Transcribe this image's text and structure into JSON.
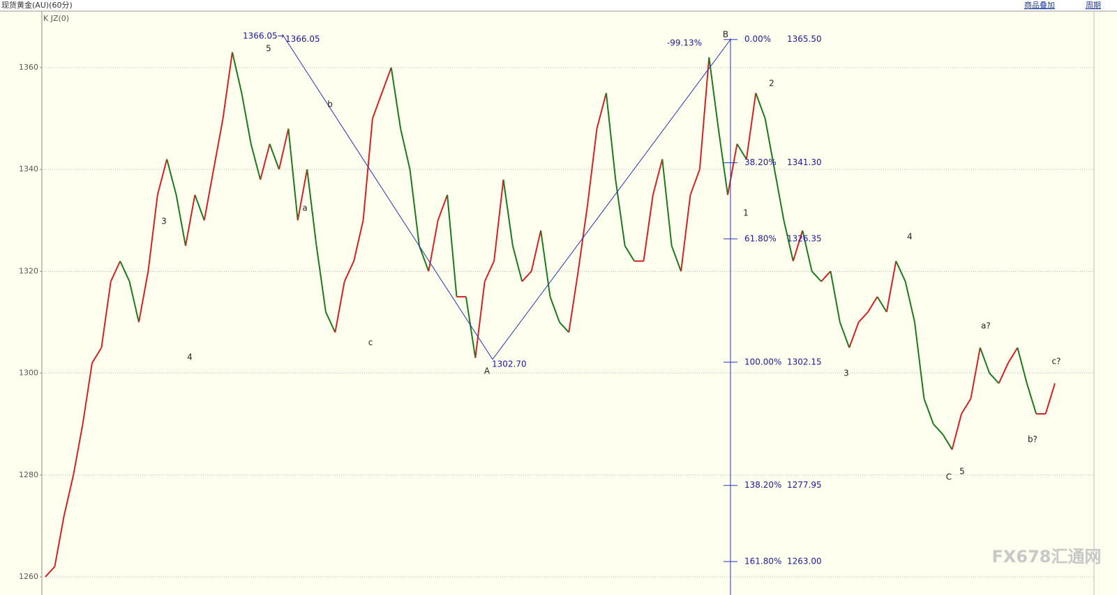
{
  "chart_data": {
    "type": "line",
    "title": "现货黄金(AU)(60分)",
    "subtitle": "K  JZ(0)",
    "toolbar": [
      "商品叠加",
      "周期"
    ],
    "watermark": "FX678汇通网",
    "up_color": "#d42020",
    "down_color": "#1a7a1a",
    "grid": true,
    "ylim": [
      1258.9,
      1370.8
    ],
    "yticks": [
      1260,
      1280,
      1300,
      1320,
      1340,
      1360
    ],
    "values": [
      1260,
      1262,
      1272,
      1280,
      1290,
      1302,
      1305,
      1318,
      1322,
      1318,
      1310,
      1320,
      1335,
      1342,
      1335,
      1325,
      1335,
      1330,
      1340,
      1350,
      1363,
      1355,
      1345,
      1338,
      1345,
      1340,
      1348,
      1330,
      1340,
      1325,
      1312,
      1308,
      1318,
      1322,
      1330,
      1350,
      1355,
      1360,
      1348,
      1340,
      1325,
      1320,
      1330,
      1335,
      1315,
      1315,
      1303,
      1318,
      1322,
      1338,
      1325,
      1318,
      1320,
      1328,
      1315,
      1310,
      1308,
      1320,
      1333,
      1348,
      1355,
      1338,
      1325,
      1322,
      1322,
      1335,
      1342,
      1325,
      1320,
      1335,
      1340,
      1362,
      1348,
      1335,
      1345,
      1342,
      1355,
      1350,
      1340,
      1330,
      1322,
      1328,
      1320,
      1318,
      1320,
      1310,
      1305,
      1310,
      1312,
      1315,
      1312,
      1322,
      1318,
      1310,
      1295,
      1290,
      1288,
      1285,
      1292,
      1295,
      1305,
      1300,
      1298,
      1302,
      1305,
      1298,
      1292,
      1292,
      1298
    ],
    "zigzag": [
      1366.05,
      {
        "value": 1302.7,
        "label": "1302.70"
      },
      1365.5
    ],
    "fib_levels": [
      {
        "pct": "0.00%",
        "price": {
          "value": 1365.5,
          "label": "1365.50"
        }
      },
      {
        "pct": "38.20%",
        "price": {
          "value": 1341.3,
          "label": "1341.30"
        }
      },
      {
        "pct": "61.80%",
        "price": {
          "value": 1326.35,
          "label": "1326.35"
        }
      },
      {
        "pct": "100.00%",
        "price": {
          "value": 1302.15,
          "label": "1302.15"
        }
      },
      {
        "pct": "138.20%",
        "price": {
          "value": 1277.95,
          "label": "1277.95"
        }
      },
      {
        "pct": "161.80%",
        "price": {
          "value": 1263,
          "label": "1263.00"
        }
      }
    ],
    "annotations": [
      "1366.05→",
      "5",
      "3",
      "4",
      "a",
      "b",
      "c",
      "A",
      "B",
      "-99.13%",
      "1",
      "2",
      "3",
      "4",
      "5",
      "C",
      "a?",
      "b?",
      "c?"
    ]
  }
}
